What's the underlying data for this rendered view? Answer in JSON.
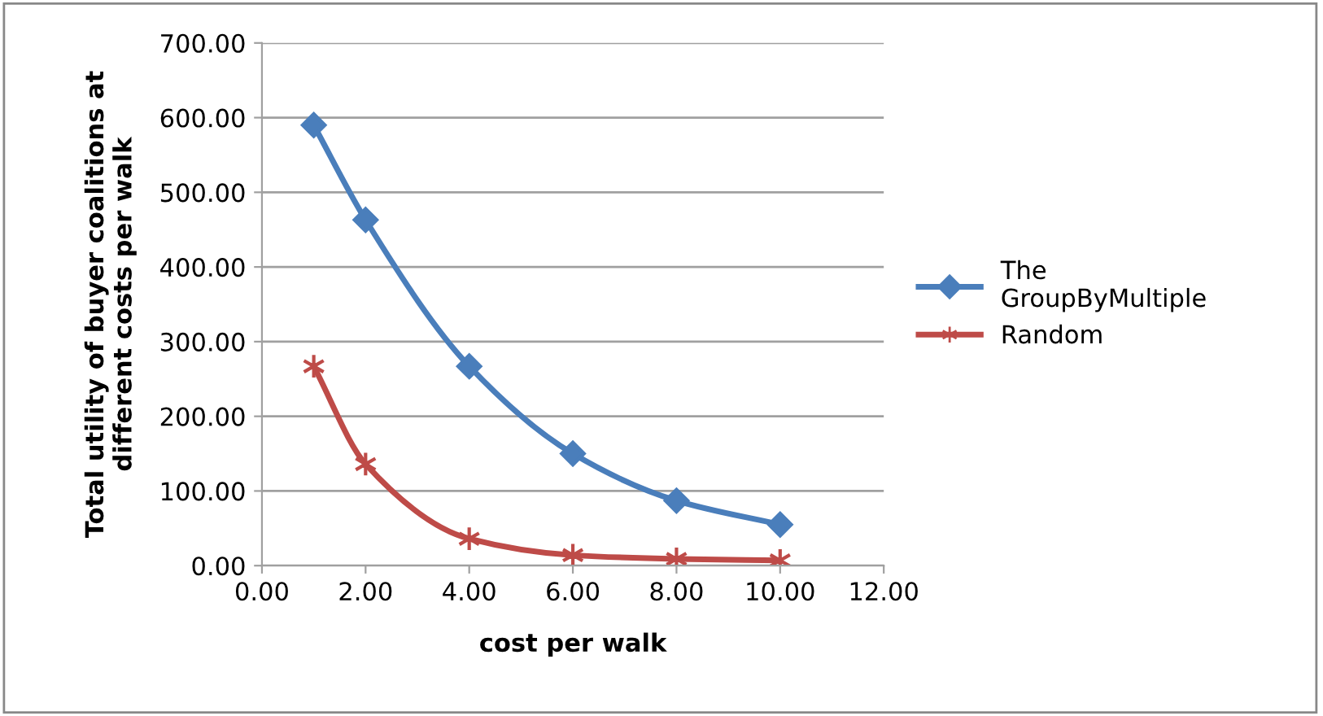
{
  "chart_data": {
    "type": "line",
    "xlabel": "cost per walk",
    "ylabel": "Total utility of buyer coalitions at\ndifferent costs per walk",
    "x": [
      1,
      2,
      4,
      6,
      8,
      10
    ],
    "series": [
      {
        "name": "The\nGroupByMultiple",
        "color": "#4a7ebb",
        "marker": "diamond",
        "values": [
          590,
          463,
          267,
          150,
          87,
          55
        ]
      },
      {
        "name": "Random",
        "color": "#be4b48",
        "marker": "cross",
        "values": [
          267,
          136,
          36,
          14,
          9,
          7
        ]
      }
    ],
    "xlim": [
      0,
      12
    ],
    "xticks": [
      {
        "value": 0,
        "label": "0.00"
      },
      {
        "value": 2,
        "label": "2.00"
      },
      {
        "value": 4,
        "label": "4.00"
      },
      {
        "value": 6,
        "label": "6.00"
      },
      {
        "value": 8,
        "label": "8.00"
      },
      {
        "value": 10,
        "label": "10.00"
      },
      {
        "value": 12,
        "label": "12.00"
      }
    ],
    "ylim": [
      0,
      700
    ],
    "yticks": [
      {
        "value": 0,
        "label": "0.00"
      },
      {
        "value": 100,
        "label": "100.00"
      },
      {
        "value": 200,
        "label": "200.00"
      },
      {
        "value": 300,
        "label": "300.00"
      },
      {
        "value": 400,
        "label": "400.00"
      },
      {
        "value": 500,
        "label": "500.00"
      },
      {
        "value": 600,
        "label": "600.00"
      },
      {
        "value": 700,
        "label": "700.00"
      }
    ],
    "grid": "y",
    "legend": "right"
  }
}
